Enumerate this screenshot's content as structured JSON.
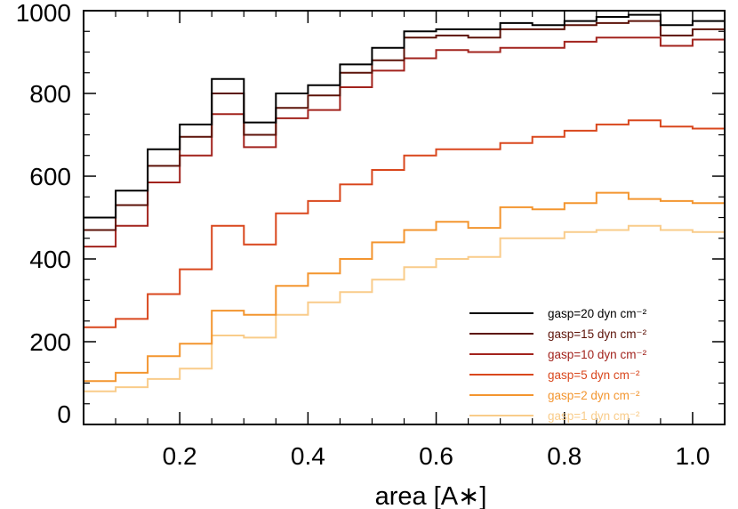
{
  "chart_data": {
    "type": "line",
    "step": true,
    "xlabel": "area [A∗]",
    "ylabel": "",
    "xlim": [
      0.05,
      1.05
    ],
    "ylim": [
      0,
      1000
    ],
    "xticks": [
      0.2,
      0.4,
      0.6,
      0.8,
      1.0
    ],
    "xtick_labels": [
      "0.2",
      "0.4",
      "0.6",
      "0.8",
      "1.0"
    ],
    "yticks": [
      0,
      200,
      400,
      600,
      800,
      1000
    ],
    "ytick_labels": [
      "0",
      "200",
      "400",
      "600",
      "800",
      "1000"
    ],
    "bin_edges": [
      0.05,
      0.1,
      0.15,
      0.2,
      0.25,
      0.3,
      0.35,
      0.4,
      0.45,
      0.5,
      0.55,
      0.6,
      0.65,
      0.7,
      0.75,
      0.8,
      0.85,
      0.9,
      0.95,
      1.0,
      1.05
    ],
    "legend_position": "bottom-right",
    "series": [
      {
        "name": "gasp=20 dyn cm⁻²",
        "color": "#000000",
        "values": [
          500,
          565,
          665,
          725,
          835,
          730,
          800,
          820,
          870,
          910,
          950,
          955,
          955,
          970,
          965,
          975,
          985,
          990,
          965,
          975
        ]
      },
      {
        "name": "gasp=15 dyn cm⁻²",
        "color": "#5c1208",
        "values": [
          470,
          530,
          625,
          695,
          800,
          700,
          765,
          795,
          850,
          880,
          935,
          940,
          935,
          955,
          955,
          965,
          970,
          975,
          940,
          955
        ]
      },
      {
        "name": "gasp=10 dyn cm⁻²",
        "color": "#a2231d",
        "values": [
          430,
          480,
          585,
          650,
          750,
          670,
          740,
          760,
          815,
          855,
          885,
          905,
          900,
          910,
          910,
          925,
          935,
          935,
          915,
          930
        ]
      },
      {
        "name": "gasp=5 dyn cm⁻²",
        "color": "#d9471d",
        "values": [
          235,
          255,
          315,
          375,
          480,
          435,
          510,
          540,
          580,
          615,
          650,
          665,
          665,
          680,
          695,
          710,
          725,
          735,
          720,
          715
        ]
      },
      {
        "name": "gasp=2 dyn cm⁻²",
        "color": "#f3952f",
        "values": [
          105,
          125,
          165,
          195,
          275,
          265,
          335,
          365,
          400,
          440,
          470,
          490,
          475,
          525,
          520,
          535,
          560,
          545,
          540,
          535
        ]
      },
      {
        "name": "gasp=1 dyn cm⁻²",
        "color": "#f9cc8a",
        "values": [
          80,
          90,
          110,
          135,
          215,
          210,
          265,
          295,
          320,
          350,
          380,
          400,
          405,
          450,
          450,
          465,
          470,
          480,
          470,
          465
        ]
      }
    ]
  }
}
